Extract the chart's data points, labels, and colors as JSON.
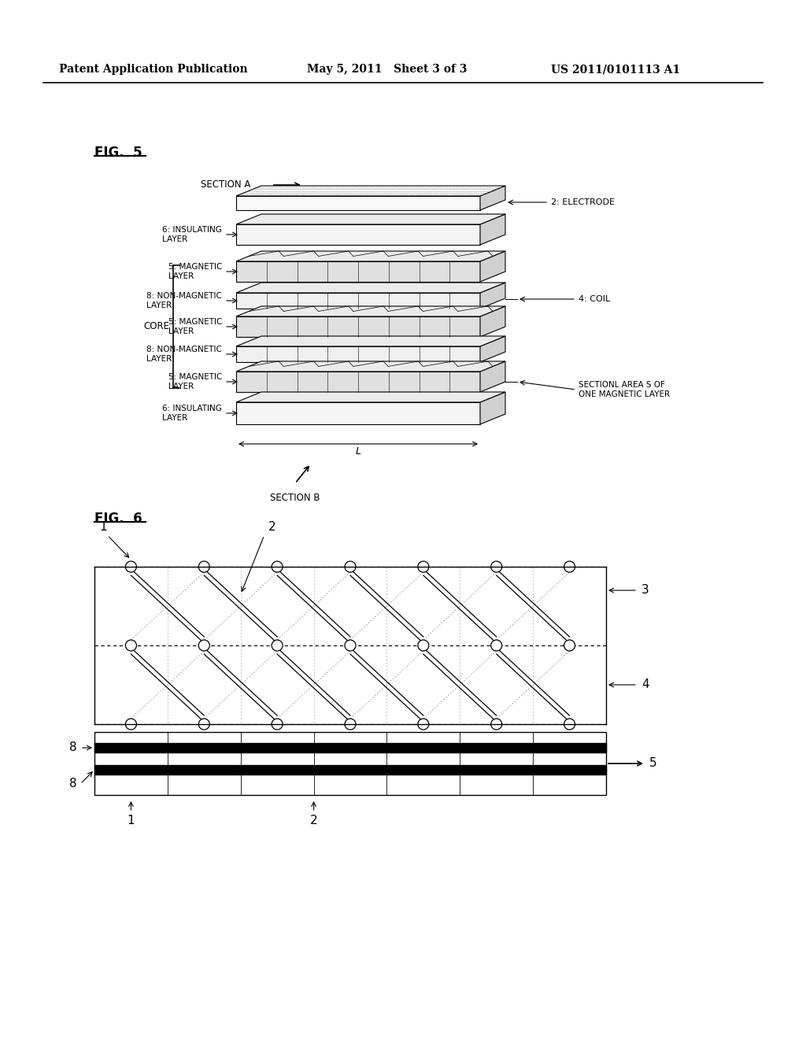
{
  "header_left": "Patent Application Publication",
  "header_mid": "May 5, 2011   Sheet 3 of 3",
  "header_right": "US 2011/0101113 A1",
  "fig5_label": "FIG.  5",
  "fig6_label": "FIG.  6",
  "section_a_label": "SECTION A",
  "section_b_label": "SECTION B",
  "bg_color": "#ffffff",
  "line_color": "#000000",
  "layer_labels": [
    "6: INSULATING\nLAYER",
    "5: MAGNETIC\nLAYER",
    "8: NON-MAGNETIC\nLAYER",
    "5: MAGNETIC\nLAYER",
    "8: NON-MAGNETIC\nLAYER",
    "5: MAGNETIC\nLAYER",
    "6: INSULATING\nLAYER"
  ],
  "right_labels": [
    "2: ELECTRODE",
    "4: COIL",
    "SECTIONL AREA S OF\nONE MAGNETIC LAYER"
  ],
  "core_label": "CORE",
  "fig6_labels": {
    "1": "1",
    "2": "2",
    "3": "3",
    "4": "4",
    "5": "5",
    "8a": "8",
    "8b": "8"
  }
}
